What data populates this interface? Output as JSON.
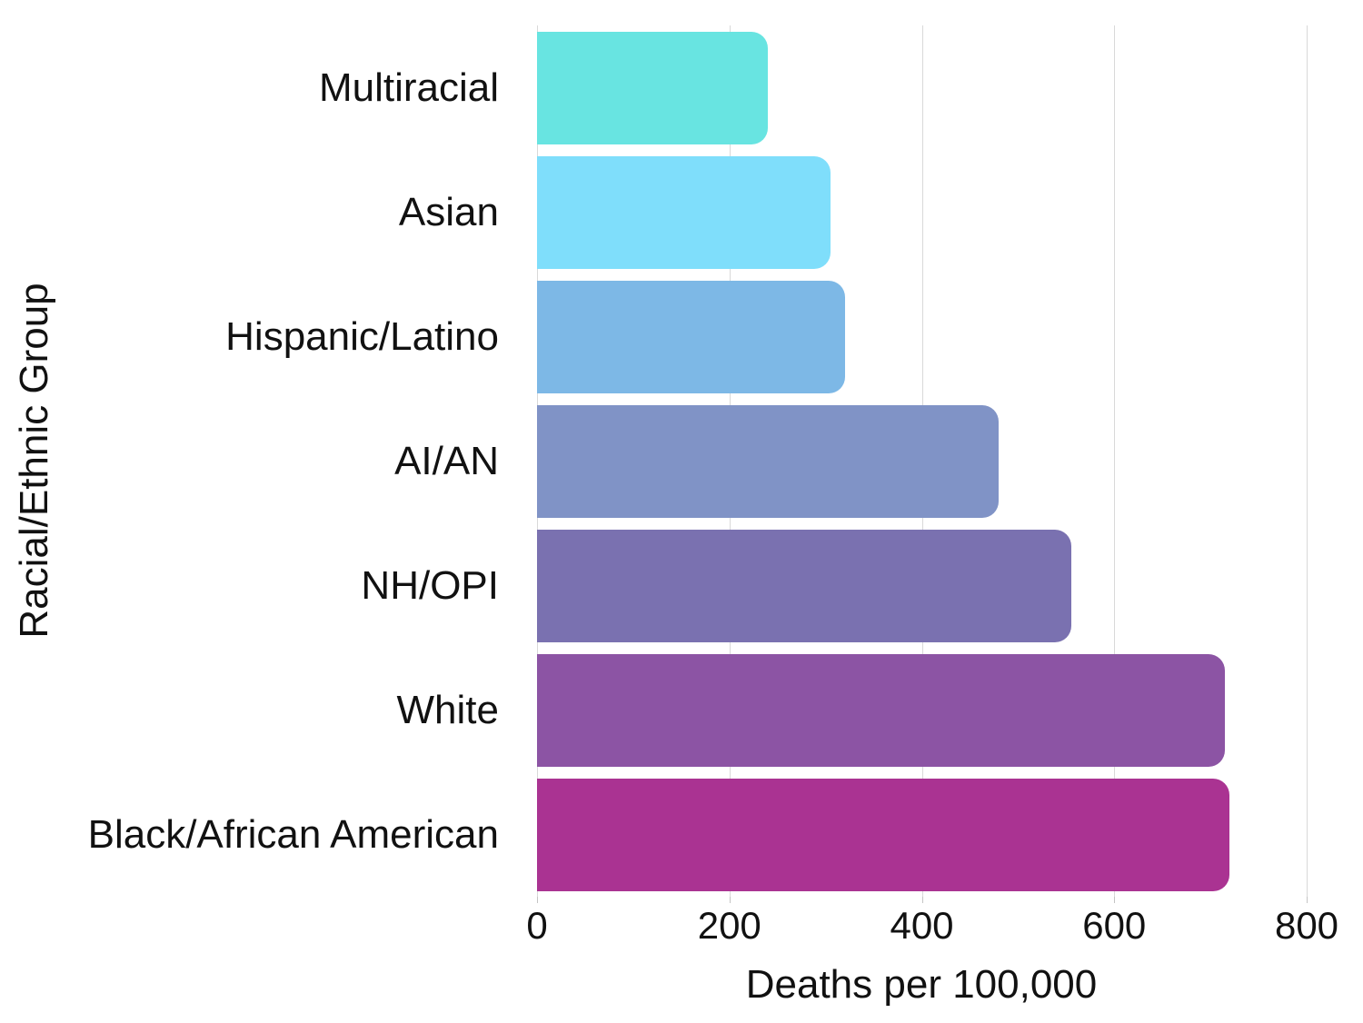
{
  "chart_data": {
    "type": "bar",
    "orientation": "horizontal",
    "categories": [
      "Multiracial",
      "Asian",
      "Hispanic/Latino",
      "AI/AN",
      "NH/OPI",
      "White",
      "Black/African American"
    ],
    "values": [
      240,
      305,
      320,
      480,
      555,
      715,
      720
    ],
    "bar_colors": [
      "#68E4E1",
      "#7FDEFB",
      "#7DB8E6",
      "#8093C6",
      "#7A71B0",
      "#8C54A4",
      "#AA3392"
    ],
    "xlabel": "Deaths per 100,000",
    "ylabel": "Racial/Ethnic Group",
    "xlim": [
      0,
      800
    ],
    "x_ticks": [
      0,
      200,
      400,
      600,
      800
    ],
    "x_tick_labels": [
      "0",
      "200",
      "400",
      "600",
      "800"
    ],
    "grid": true,
    "legend": false,
    "gridline_color": "#D9D9D9",
    "background_color": "#FFFFFF",
    "text_color": "#111111"
  }
}
